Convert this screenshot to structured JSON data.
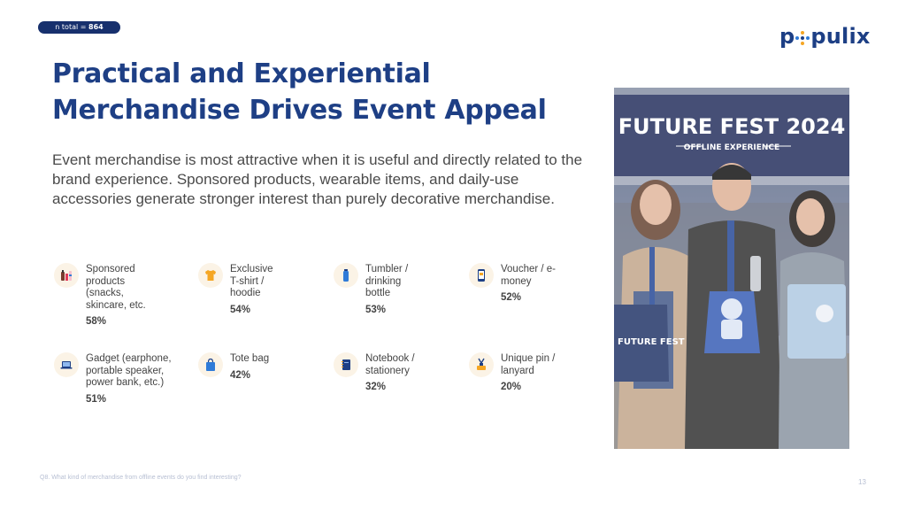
{
  "badge": {
    "prefix": "n total = ",
    "value": "864"
  },
  "logo": {
    "left": "p",
    "right": "pulix"
  },
  "title": {
    "line1": "Practical and Experiential",
    "line2": "Merchandise Drives Event Appeal"
  },
  "description": "Event merchandise is most attractive when it is useful and directly related to the brand experience. Sponsored products, wearable items, and daily-use accessories generate stronger interest than purely decorative merchandise.",
  "items": [
    {
      "label": "Sponsored products (snacks, skincare, etc.",
      "value": "58%",
      "icon": "cosmetics-icon"
    },
    {
      "label": "Exclusive T-shirt / hoodie",
      "value": "54%",
      "icon": "tshirt-icon"
    },
    {
      "label": "Tumbler / drinking bottle",
      "value": "53%",
      "icon": "bottle-icon"
    },
    {
      "label": "Voucher / e-money",
      "value": "52%",
      "icon": "phone-icon"
    },
    {
      "label": "Gadget (earphone, portable speaker, power bank, etc.)",
      "value": "51%",
      "icon": "laptop-icon"
    },
    {
      "label": "Tote bag",
      "value": "42%",
      "icon": "bag-icon"
    },
    {
      "label": "Notebook / stationery",
      "value": "32%",
      "icon": "notebook-icon"
    },
    {
      "label": "Unique pin / lanyard",
      "value": "20%",
      "icon": "pin-icon"
    }
  ],
  "photo": {
    "banner_title": "FUTURE FEST 2024",
    "banner_subtitle": "OFFLINE EXPERIENCE",
    "bag_text": "FUTURE FEST"
  },
  "footnote": "Q8. What kind of merchandise from offline events do you find interesting?",
  "page_number": "13",
  "colors": {
    "navy": "#1e3f85",
    "accent_orange": "#f5a623",
    "icon_blue": "#2f7bd8",
    "icon_bg": "#fbf3e6"
  }
}
